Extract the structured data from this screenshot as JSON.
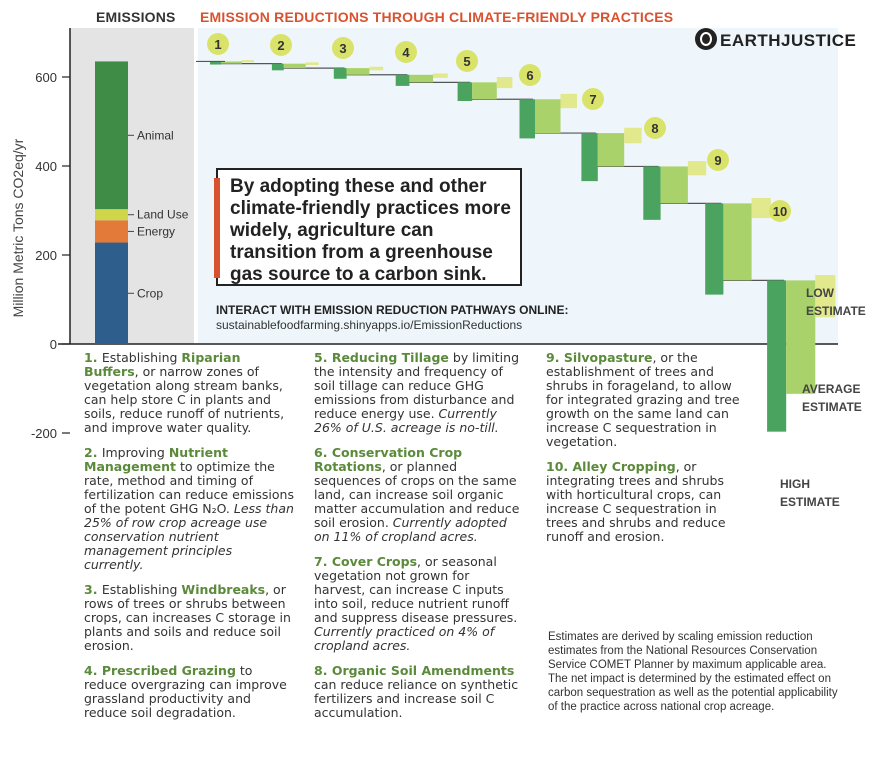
{
  "headers": {
    "emissions": "EMISSIONS",
    "reductions": "EMISSION REDUCTIONS THROUGH CLIMATE-FRIENDLY PRACTICES",
    "brand": "EARTHJUSTICE"
  },
  "callout": "By adopting these and other climate-friendly practices more widely, agriculture can transition from a greenhouse gas source to a carbon sink.",
  "interact": {
    "label": "INTERACT WITH EMISSION REDUCTION PATHWAYS ONLINE:",
    "url": "sustainablefoodfarming.shinyapps.io/EmissionReductions"
  },
  "estimates": {
    "low": [
      "LOW",
      "ESTIMATE"
    ],
    "average": [
      "AVERAGE",
      "ESTIMATE"
    ],
    "high": [
      "HIGH",
      "ESTIMATE"
    ]
  },
  "colors": {
    "dark": "#4aa460",
    "medium": "#a9d36a",
    "light": "#e2e88c",
    "badge": "#d9e36a",
    "accent": "#d9522f",
    "animal": "#3e8c46",
    "landuse": "#cfd64a",
    "energy": "#e37a3a",
    "crop": "#2e5e8c",
    "bg": "#eef6fb"
  },
  "chart_data": [
    {
      "type": "bar",
      "title": "EMISSIONS",
      "ylabel": "Million Metric Tons CO2eq/yr",
      "yticks": [
        600,
        400,
        200,
        0,
        -200
      ],
      "ylim": [
        -320,
        700
      ],
      "grid": false,
      "stack": [
        {
          "name": "Crop",
          "value": 228
        },
        {
          "name": "Energy",
          "value": 50
        },
        {
          "name": "Land Use",
          "value": 25
        },
        {
          "name": "Animal",
          "value": 332
        }
      ],
      "total": 635
    },
    {
      "type": "bar",
      "title": "EMISSION REDUCTIONS THROUGH CLIMATE-FRIENDLY PRACTICES",
      "categories": [
        "1",
        "2",
        "3",
        "4",
        "5",
        "6",
        "7",
        "8",
        "9",
        "10"
      ],
      "start": [
        635,
        630,
        620,
        605,
        588,
        550,
        474,
        399,
        316,
        143
      ],
      "series": [
        {
          "name": "LOW ESTIMATE",
          "values": [
            2,
            3,
            5,
            7,
            13,
            20,
            23,
            20,
            33,
            83
          ]
        },
        {
          "name": "AVERAGE ESTIMATE",
          "values": [
            5,
            10,
            15,
            17,
            38,
            76,
            75,
            83,
            173,
            255
          ]
        },
        {
          "name": "HIGH ESTIMATE",
          "values": [
            7,
            15,
            24,
            25,
            42,
            88,
            108,
            120,
            205,
            340
          ]
        }
      ]
    }
  ],
  "items": [
    {
      "n": "1.",
      "pre": "Establishing ",
      "kw": "Riparian Buffers",
      "post": ", or narrow zones of vegetation along stream banks, can help store C in plants and soils, reduce runoff of nutrients, and improve water quality.",
      "it": ""
    },
    {
      "n": "2.",
      "pre": "Improving ",
      "kw": "Nutrient Management",
      "post": " to optimize the rate, method and timing of fertilization can reduce emissions of the potent GHG N₂O.",
      "it": " Less than 25% of row crop acreage use conservation nutrient management principles currently."
    },
    {
      "n": "3.",
      "pre": "Establishing ",
      "kw": "Windbreaks",
      "post": ", or rows of trees or shrubs between crops, can increases C storage in plants and soils and reduce soil erosion.",
      "it": ""
    },
    {
      "n": "4.",
      "pre": "",
      "kw": "Prescribed Grazing",
      "post": " to reduce overgrazing can improve grassland productivity and reduce soil degradation.",
      "it": ""
    },
    {
      "n": "5.",
      "pre": "",
      "kw": "Reducing Tillage",
      "post": " by limiting the intensity and frequency of soil tillage can reduce GHG emissions from disturbance and reduce energy use.",
      "it": " Currently 26% of U.S. acreage is no-till."
    },
    {
      "n": "6.",
      "pre": "",
      "kw": "Conservation Crop Rotations",
      "post": ", or planned sequences of crops on the same land, can increase soil organic matter accumulation and reduce soil erosion.",
      "it": " Currently adopted on 11% of cropland acres."
    },
    {
      "n": "7.",
      "pre": "",
      "kw": "Cover Crops",
      "post": ", or seasonal vegetation not grown for harvest, can increase C inputs into soil, reduce nutrient runoff and suppress disease pressures.",
      "it": " Currently practiced on 4% of cropland acres."
    },
    {
      "n": "8.",
      "pre": "",
      "kw": "Organic Soil Amendments",
      "post": " can reduce reliance on synthetic fertilizers and increase soil C accumulation.",
      "it": ""
    },
    {
      "n": "9.",
      "pre": "",
      "kw": "Silvopasture",
      "post": ", or the establishment of trees and shrubs in forageland, to allow for integrated grazing and tree growth on the same land can increase C sequestration in vegetation.",
      "it": ""
    },
    {
      "n": "10.",
      "pre": "",
      "kw": "Alley Cropping",
      "post": ", or integrating trees and shrubs with horticultural crops, can increase C sequestration in trees and shrubs and reduce runoff and erosion.",
      "it": ""
    }
  ],
  "note": "Estimates are derived by scaling emission reduction estimates from the National Resources Conservation Service COMET Planner by maximum applicable area. The net impact is determined by the estimated effect on carbon sequestration as well as the potential applicability of the practice across national crop acreage."
}
